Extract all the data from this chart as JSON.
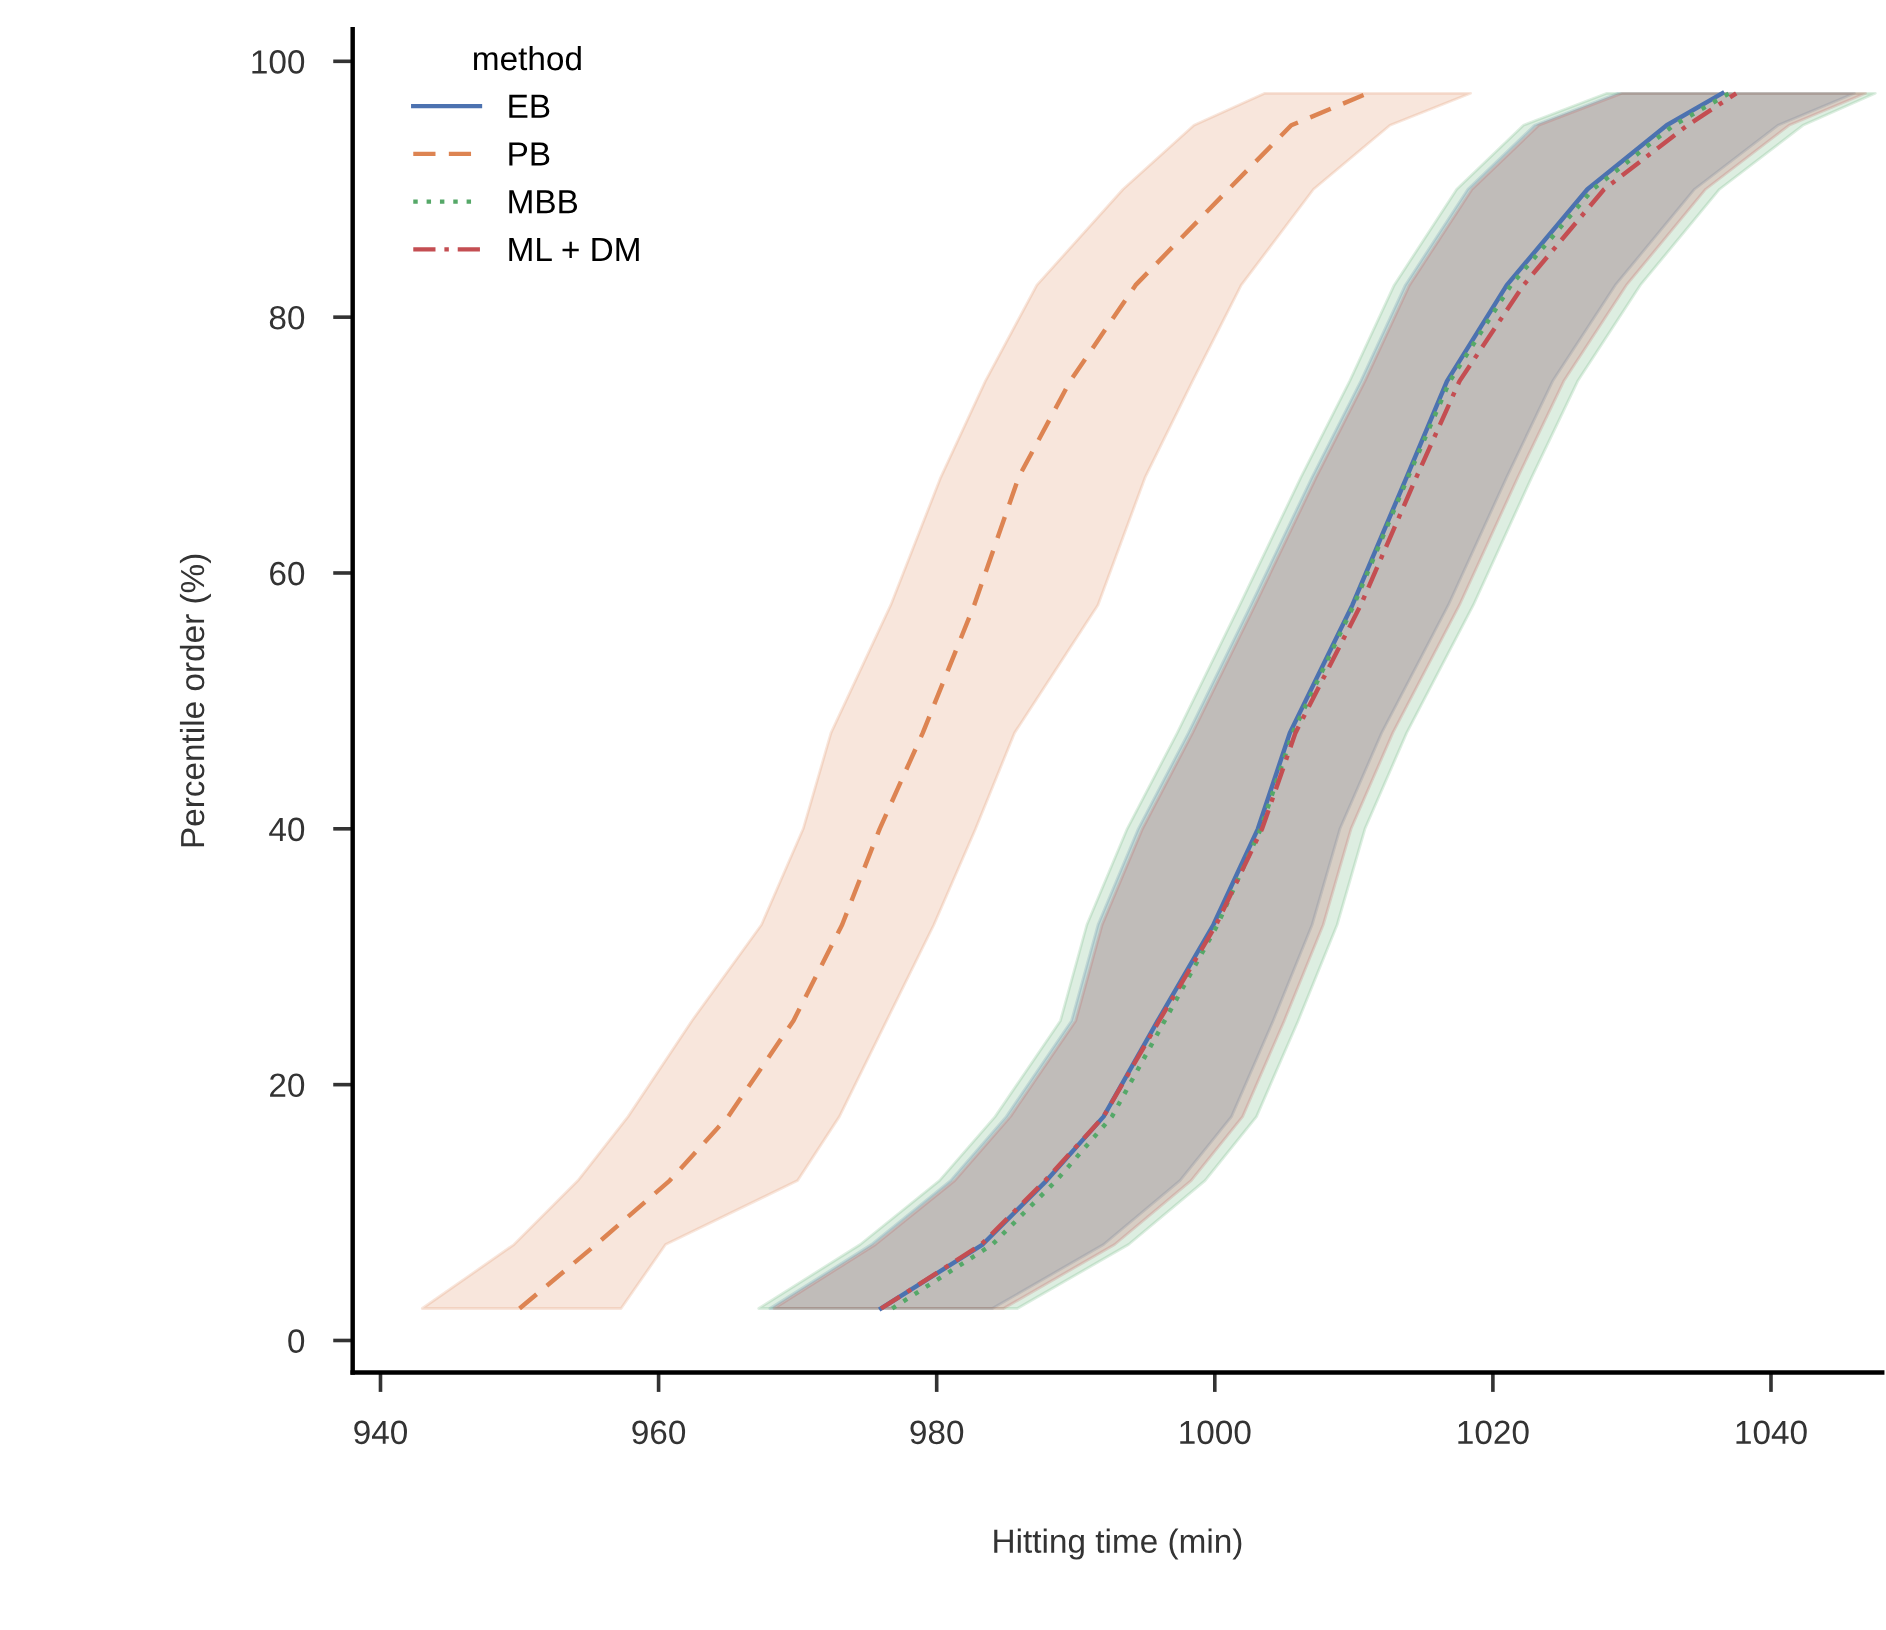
{
  "chart_data": {
    "type": "line",
    "orientation": "horizontal",
    "xlabel": "Hitting time (min)",
    "ylabel": "Percentile order (%)",
    "legend_title": "method",
    "legend": "top left",
    "grid": false,
    "xlim": [
      938,
      1048
    ],
    "xticks": [
      940,
      960,
      980,
      1000,
      1020,
      1040
    ],
    "ylim": [
      -2.5,
      102.5
    ],
    "yticks": [
      0,
      20,
      40,
      60,
      80,
      100
    ],
    "series": [
      {
        "name": "EB",
        "color": "#4c72b0",
        "line_style": "solid",
        "values": [
          976,
          983.3,
          987.9,
          992,
          995.9,
          999.9,
          1003.1,
          1005.4,
          1009.9,
          1013.8,
          1016.7,
          1021,
          1026.8,
          1032.5,
          1036.5
        ],
        "x": [
          2.5,
          7.5,
          12.5,
          17.5,
          25,
          32.5,
          40,
          47.5,
          57.5,
          67.5,
          75,
          82.5,
          90,
          95,
          97.5
        ],
        "lower": [
          968,
          975.3,
          981,
          985,
          989.7,
          991.6,
          994.5,
          998.1,
          1002.6,
          1007,
          1010.5,
          1013.7,
          1018.2,
          1023,
          1029
        ],
        "upper": [
          984,
          992,
          997.5,
          1001.2,
          1004.2,
          1007,
          1009,
          1012,
          1016.8,
          1021,
          1024.3,
          1028.8,
          1034.5,
          1040.5,
          1046
        ]
      },
      {
        "name": "PB",
        "color": "#dd8452",
        "line_style": "dashed",
        "values": [
          950,
          955.5,
          960.8,
          965,
          969.7,
          973.2,
          975.9,
          979,
          982.7,
          985.9,
          989.6,
          994.3,
          1001,
          1005.5,
          1011
        ],
        "x": [
          2.5,
          7.5,
          12.5,
          17.5,
          25,
          32.5,
          40,
          47.5,
          57.5,
          67.5,
          75,
          82.5,
          90,
          95,
          97.5
        ],
        "lower": [
          943,
          949.6,
          954.2,
          957.8,
          962.4,
          967.4,
          970.4,
          972.4,
          976.7,
          980.3,
          983.5,
          987.2,
          993.4,
          998.5,
          1003.6
        ],
        "upper": [
          957.3,
          960.5,
          970,
          973,
          976.4,
          979.8,
          982.8,
          985.6,
          991.6,
          995,
          998.4,
          1001.9,
          1007.1,
          1012.6,
          1018.4
        ]
      },
      {
        "name": "MBB",
        "color": "#55a868",
        "line_style": "dotted",
        "values": [
          976.8,
          984,
          988.6,
          992.6,
          996.4,
          1000.2,
          1003.3,
          1005.6,
          1010,
          1013.9,
          1016.9,
          1021.3,
          1027.2,
          1033,
          1037
        ],
        "x": [
          2.5,
          7.5,
          12.5,
          17.5,
          25,
          32.5,
          40,
          47.5,
          57.5,
          67.5,
          75,
          82.5,
          90,
          95,
          97.5
        ],
        "lower": [
          967.2,
          974.5,
          980.2,
          984.2,
          988.9,
          990.8,
          993.7,
          997.3,
          1001.8,
          1006.2,
          1009.7,
          1012.9,
          1017.4,
          1022.2,
          1028.2
        ],
        "upper": [
          985.8,
          993.8,
          999.3,
          1003,
          1006,
          1008.8,
          1010.8,
          1013.8,
          1018.6,
          1022.8,
          1026.1,
          1030.6,
          1036.3,
          1042.3,
          1047.5
        ]
      },
      {
        "name": "ML + DM",
        "color": "#c44e52",
        "line_style": "dashdot",
        "values": [
          976,
          983.2,
          987.8,
          992,
          996,
          1000.1,
          1003.4,
          1005.8,
          1010.5,
          1014.5,
          1017.6,
          1022.2,
          1028,
          1034,
          1037.5
        ],
        "x": [
          2.5,
          7.5,
          12.5,
          17.5,
          25,
          32.5,
          40,
          47.5,
          57.5,
          67.5,
          75,
          82.5,
          90,
          95,
          97.5
        ],
        "lower": [
          968.3,
          975.6,
          981.3,
          985.3,
          990,
          991.9,
          994.8,
          998.4,
          1002.9,
          1007.3,
          1010.8,
          1014,
          1018.5,
          1023.3,
          1029.3
        ],
        "upper": [
          984.8,
          992.8,
          998.3,
          1002,
          1005,
          1007.8,
          1009.8,
          1012.8,
          1017.6,
          1021.8,
          1025.1,
          1029.6,
          1035.3,
          1041.3,
          1046.8
        ]
      }
    ]
  }
}
